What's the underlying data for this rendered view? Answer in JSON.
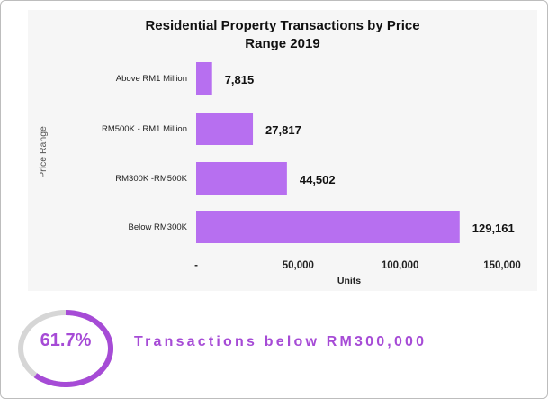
{
  "chart_data": {
    "type": "bar",
    "orientation": "horizontal",
    "title": "Residential Property Transactions by Price Range 2019",
    "title_lines": [
      "Residential Property Transactions by Price",
      "Range 2019"
    ],
    "categories": [
      "Above RM1 Million",
      "RM500K - RM1 Million",
      "RM300K -RM500K",
      "Below RM300K"
    ],
    "values": [
      7815,
      27817,
      44502,
      129161
    ],
    "data_labels": [
      "7,815",
      "27,817",
      "44,502",
      "129,161"
    ],
    "xlabel": "Units",
    "ylabel": "Price Range",
    "xlim": [
      0,
      150000
    ],
    "xticks": [
      0,
      50000,
      100000,
      150000
    ],
    "xtick_labels": [
      "-",
      "50,000",
      "100,000",
      "150,000"
    ],
    "grid": false,
    "bar_color": "#b76ff0"
  },
  "summary": {
    "percent_label": "61.7%",
    "percent_value": 61.7,
    "text": "Transactions below RM300,000",
    "accent_color": "#a64bd6",
    "track_color": "#d6d6d6"
  }
}
